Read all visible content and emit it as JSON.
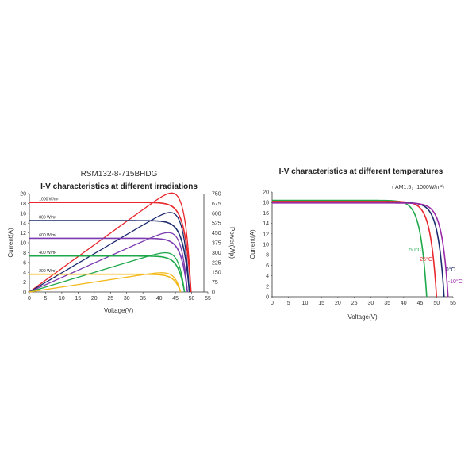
{
  "chart_data": [
    {
      "type": "line",
      "model": "RSM132-8-715BHDG",
      "title": "I-V characteristics at different irradiations",
      "xlabel": "Voltage(V)",
      "ylabel": "Current(A)",
      "y2label": "Power(Wp)",
      "xlim": [
        0,
        55
      ],
      "ylim": [
        0,
        20
      ],
      "y2lim": [
        0,
        750
      ],
      "xticks": [
        "0",
        "5",
        "10",
        "15",
        "20",
        "25",
        "30",
        "35",
        "40",
        "45",
        "50",
        "55"
      ],
      "yticks": [
        "0",
        "2",
        "4",
        "6",
        "8",
        "10",
        "12",
        "14",
        "16",
        "18",
        "20"
      ],
      "y2ticks": [
        "0",
        "75",
        "150",
        "225",
        "300",
        "375",
        "450",
        "525",
        "600",
        "675",
        "750"
      ],
      "series": [
        {
          "name": "1000 W/m²",
          "isc": 18.2,
          "voc": 49.8,
          "pmax": 715,
          "color": "#e8262b"
        },
        {
          "name": "800 W/m²",
          "isc": 14.5,
          "voc": 49.3,
          "pmax": 575,
          "color": "#1c2a6e"
        },
        {
          "name": "600 W/m²",
          "isc": 10.9,
          "voc": 48.7,
          "pmax": 430,
          "color": "#7b3bb0"
        },
        {
          "name": "400 W/m²",
          "isc": 7.3,
          "voc": 47.8,
          "pmax": 285,
          "color": "#1fa84a"
        },
        {
          "name": "200 W/m²",
          "isc": 3.6,
          "voc": 46.6,
          "pmax": 140,
          "color": "#f3b81a"
        }
      ]
    },
    {
      "type": "line",
      "title": "I-V characteristics at different temperatures",
      "subtitle": "( AM1.5，1000W/m²)",
      "xlabel": "Voltage(V)",
      "ylabel": "Current(A)",
      "xlim": [
        0,
        55
      ],
      "ylim": [
        0,
        20
      ],
      "xticks": [
        "0",
        "5",
        "10",
        "15",
        "20",
        "25",
        "30",
        "35",
        "40",
        "45",
        "50",
        "55"
      ],
      "yticks": [
        "0",
        "2",
        "4",
        "6",
        "8",
        "10",
        "12",
        "14",
        "16",
        "18",
        "20"
      ],
      "series": [
        {
          "name": "50°C",
          "isc": 18.4,
          "voc": 47.0,
          "color": "#1fa84a"
        },
        {
          "name": "25°C",
          "isc": 18.2,
          "voc": 50.0,
          "color": "#e8262b"
        },
        {
          "name": "0°C",
          "isc": 18.0,
          "voc": 52.3,
          "color": "#1c2a6e"
        },
        {
          "name": "-10°C",
          "isc": 17.9,
          "voc": 53.5,
          "color": "#9a2aa8"
        }
      ]
    }
  ]
}
